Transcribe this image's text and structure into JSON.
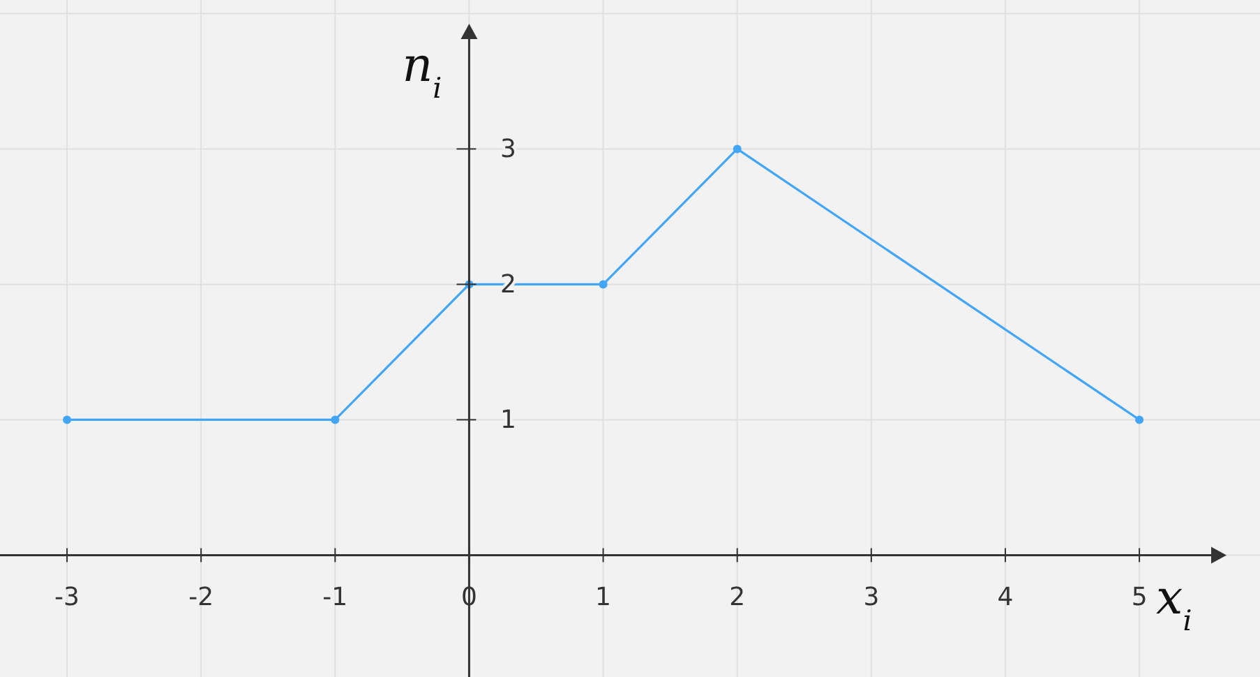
{
  "chart_data": {
    "type": "line",
    "xlabel": "x$_{i}$",
    "ylabel": "n$_{i}$",
    "x": [
      -3,
      -1,
      0,
      1,
      2,
      5
    ],
    "series": [
      {
        "color": "#42a5f5",
        "values": [
          1,
          1,
          2,
          2,
          3,
          1
        ]
      }
    ],
    "xlim": [
      -3.5,
      5.9
    ],
    "ylim": [
      -0.9,
      4.1
    ],
    "xticks": [
      -3,
      -2,
      -1,
      0,
      1,
      2,
      3,
      4,
      5
    ],
    "yticks": [
      1,
      2,
      3
    ],
    "grid": true,
    "marker": "circle",
    "line_style": "solid"
  }
}
